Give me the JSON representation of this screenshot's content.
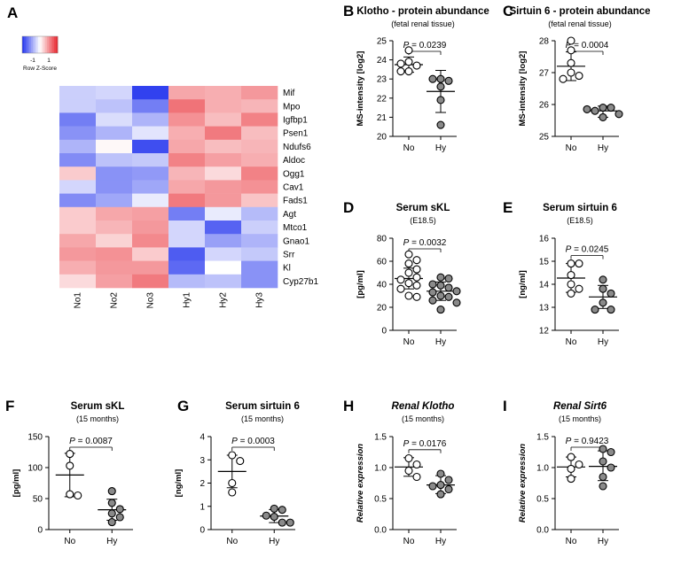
{
  "panel_a": {
    "letter": "A",
    "legend": {
      "ticks": [
        "-1",
        "1"
      ],
      "label": "Row Z-Score"
    },
    "genes": [
      "Mif",
      "Mpo",
      "Igfbp1",
      "Psen1",
      "Ndufs6",
      "Aldoc",
      "Ogg1",
      "Cav1",
      "Fads1",
      "Agt",
      "Mtco1",
      "Gnao1",
      "Srr",
      "Kl",
      "Cyp27b1"
    ],
    "samples": [
      "No1",
      "No2",
      "No3",
      "Hy1",
      "Hy2",
      "Hy3"
    ]
  },
  "colors": {
    "high": "#e8222a",
    "low": "#2233ee",
    "mid": "#ffffff",
    "open_fill": "#ffffff",
    "filled_fill": "#8a8a8a"
  },
  "chart_data": [
    {
      "type": "heatmap",
      "title": "",
      "rows": [
        "Mif",
        "Mpo",
        "Igfbp1",
        "Psen1",
        "Ndufs6",
        "Aldoc",
        "Ogg1",
        "Cav1",
        "Fads1",
        "Agt",
        "Mtco1",
        "Gnao1",
        "Srr",
        "Kl",
        "Cyp27b1"
      ],
      "columns": [
        "No1",
        "No2",
        "No3",
        "Hy1",
        "Hy2",
        "Hy3"
      ],
      "zrange": [
        -1.5,
        1.5
      ],
      "values": [
        [
          -0.35,
          -0.3,
          -1.4,
          0.6,
          0.55,
          0.7
        ],
        [
          -0.35,
          -0.45,
          -0.95,
          0.95,
          0.55,
          0.5
        ],
        [
          -0.95,
          -0.25,
          -0.55,
          0.75,
          0.45,
          0.85
        ],
        [
          -0.8,
          -0.55,
          -0.2,
          0.55,
          0.9,
          0.45
        ],
        [
          -0.55,
          0.05,
          -1.3,
          0.6,
          0.45,
          0.5
        ],
        [
          -0.85,
          -0.45,
          -0.4,
          0.85,
          0.65,
          0.55
        ],
        [
          0.35,
          -0.8,
          -0.75,
          0.5,
          0.25,
          0.85
        ],
        [
          -0.3,
          -0.8,
          -0.65,
          0.6,
          0.7,
          0.75
        ],
        [
          -0.85,
          -0.65,
          -0.15,
          0.9,
          0.7,
          0.4
        ],
        [
          0.35,
          0.6,
          0.65,
          -0.95,
          -0.15,
          -0.5
        ],
        [
          0.35,
          0.5,
          0.7,
          -0.3,
          -1.15,
          -0.35
        ],
        [
          0.6,
          0.3,
          0.8,
          -0.3,
          -0.7,
          -0.55
        ],
        [
          0.7,
          0.75,
          0.35,
          -1.2,
          -0.3,
          -0.4
        ],
        [
          0.55,
          0.7,
          0.7,
          -1.1,
          0.0,
          -0.8
        ],
        [
          0.25,
          0.65,
          0.9,
          -0.5,
          -0.45,
          -0.8
        ]
      ]
    },
    {
      "type": "scatter",
      "panel": "B",
      "title": "Klotho - protein abundance",
      "subtitle": "(fetal renal tissue)",
      "title_italic": false,
      "ylabel": "MS-intensity [log2]",
      "ylabel_italic": false,
      "ylim": [
        20,
        25
      ],
      "yticks": [
        "20",
        "21",
        "22",
        "23",
        "24",
        "25"
      ],
      "categories": [
        "No",
        "Hy"
      ],
      "pvalue": "0.0239",
      "groups": [
        {
          "name": "No",
          "values": [
            24.5,
            23.9,
            23.7,
            23.4,
            23.4,
            23.8
          ],
          "mean": 23.75,
          "sd_low": 23.35,
          "sd_high": 24.15
        },
        {
          "name": "Hy",
          "values": [
            23.0,
            22.9,
            22.6,
            21.9,
            20.6,
            23.0
          ],
          "mean": 22.35,
          "sd_low": 21.25,
          "sd_high": 23.45
        }
      ]
    },
    {
      "type": "scatter",
      "panel": "C",
      "title": "Sirtuin 6 - protein abundance",
      "subtitle": "(fetal renal tissue)",
      "title_italic": false,
      "ylabel": "MS-intensity [log2]",
      "ylabel_italic": false,
      "ylim": [
        25,
        28
      ],
      "yticks": [
        "25",
        "26",
        "27",
        "28"
      ],
      "categories": [
        "No",
        "Hy"
      ],
      "pvalue": "0.0004",
      "groups": [
        {
          "name": "No",
          "values": [
            28.0,
            27.3,
            27.0,
            26.9,
            26.8,
            27.7
          ],
          "mean": 27.2,
          "sd_low": 26.75,
          "sd_high": 27.65
        },
        {
          "name": "Hy",
          "values": [
            25.9,
            25.9,
            25.8,
            25.6,
            25.7,
            25.85
          ],
          "mean": 25.8,
          "sd_low": 25.6,
          "sd_high": 25.95
        }
      ]
    },
    {
      "type": "scatter",
      "panel": "D",
      "title": "Serum sKL",
      "subtitle": "(E18.5)",
      "title_italic": false,
      "ylabel": "[pg/ml]",
      "ylabel_italic": false,
      "ylim": [
        0,
        80
      ],
      "yticks": [
        "0",
        "20",
        "40",
        "60",
        "80"
      ],
      "categories": [
        "No",
        "Hy"
      ],
      "pvalue": "0.0032",
      "groups": [
        {
          "name": "No",
          "values": [
            66,
            61,
            58,
            53,
            50,
            46,
            44,
            41,
            39,
            36,
            30,
            29
          ],
          "mean": 45,
          "sd_low": 36,
          "sd_high": 54
        },
        {
          "name": "Hy",
          "values": [
            46,
            45,
            40,
            39,
            37,
            34,
            33,
            30,
            29,
            26,
            24,
            18
          ],
          "mean": 34,
          "sd_low": 26,
          "sd_high": 42
        }
      ]
    },
    {
      "type": "scatter",
      "panel": "E",
      "title": "Serum sirtuin 6",
      "subtitle": "(E18.5)",
      "title_italic": false,
      "ylabel": "[ng/ml]",
      "ylabel_italic": false,
      "ylim": [
        12,
        16
      ],
      "yticks": [
        "12",
        "13",
        "14",
        "15",
        "16"
      ],
      "categories": [
        "No",
        "Hy"
      ],
      "pvalue": "0.0245",
      "groups": [
        {
          "name": "No",
          "values": [
            14.9,
            14.9,
            14.4,
            14.0,
            13.8,
            13.6
          ],
          "mean": 14.27,
          "sd_low": 13.65,
          "sd_high": 14.9
        },
        {
          "name": "Hy",
          "values": [
            14.2,
            13.8,
            13.6,
            13.2,
            12.9,
            12.9
          ],
          "mean": 13.45,
          "sd_low": 12.95,
          "sd_high": 13.95
        }
      ]
    },
    {
      "type": "scatter",
      "panel": "F",
      "title": "Serum sKL",
      "subtitle": "(15 months)",
      "title_italic": false,
      "ylabel": "[pg/ml]",
      "ylabel_italic": false,
      "ylim": [
        0,
        150
      ],
      "yticks": [
        "0",
        "50",
        "100",
        "150"
      ],
      "categories": [
        "No",
        "Hy"
      ],
      "pvalue": "0.0087",
      "groups": [
        {
          "name": "No",
          "values": [
            122,
            103,
            57,
            55
          ],
          "mean": 88,
          "sd_low": 53,
          "sd_high": 123
        },
        {
          "name": "Hy",
          "values": [
            62,
            43,
            33,
            26,
            20,
            12
          ],
          "mean": 32,
          "sd_low": 15,
          "sd_high": 49
        }
      ]
    },
    {
      "type": "scatter",
      "panel": "G",
      "title": "Serum sirtuin 6",
      "subtitle": "(15 months)",
      "title_italic": false,
      "ylabel": "[ng/ml]",
      "ylabel_italic": false,
      "ylim": [
        0,
        4
      ],
      "yticks": [
        "0",
        "1",
        "2",
        "3",
        "4"
      ],
      "categories": [
        "No",
        "Hy"
      ],
      "pvalue": "0.0003",
      "groups": [
        {
          "name": "No",
          "values": [
            3.2,
            2.95,
            2.0,
            1.6
          ],
          "mean": 2.5,
          "sd_low": 1.8,
          "sd_high": 3.2
        },
        {
          "name": "Hy",
          "values": [
            0.9,
            0.85,
            0.6,
            0.55,
            0.3,
            0.3
          ],
          "mean": 0.58,
          "sd_low": 0.3,
          "sd_high": 0.86
        }
      ]
    },
    {
      "type": "scatter",
      "panel": "H",
      "title": "Renal Klotho",
      "subtitle": "(15 months)",
      "title_italic": true,
      "ylabel": "Relative expression",
      "ylabel_italic": true,
      "ylim": [
        0,
        1.5
      ],
      "yticks": [
        "0.0",
        "0.5",
        "1.0",
        "1.5"
      ],
      "categories": [
        "No",
        "Hy"
      ],
      "pvalue": "0.0176",
      "groups": [
        {
          "name": "No",
          "values": [
            1.15,
            1.05,
            0.95,
            0.85
          ],
          "mean": 1.01,
          "sd_low": 0.86,
          "sd_high": 1.16
        },
        {
          "name": "Hy",
          "values": [
            0.9,
            0.8,
            0.72,
            0.7,
            0.65,
            0.57
          ],
          "mean": 0.72,
          "sd_low": 0.58,
          "sd_high": 0.87
        }
      ]
    },
    {
      "type": "scatter",
      "panel": "I",
      "title": "Renal Sirt6",
      "subtitle": "(15 months)",
      "title_italic": true,
      "ylabel": "Relative expression",
      "ylabel_italic": true,
      "ylim": [
        0,
        1.5
      ],
      "yticks": [
        "0.0",
        "0.5",
        "1.0",
        "1.5"
      ],
      "categories": [
        "No",
        "Hy"
      ],
      "pvalue": "0.9423",
      "groups": [
        {
          "name": "No",
          "values": [
            1.17,
            1.05,
            0.98,
            0.82
          ],
          "mean": 1.01,
          "sd_low": 0.85,
          "sd_high": 1.17
        },
        {
          "name": "Hy",
          "values": [
            1.3,
            1.25,
            1.1,
            1.0,
            0.85,
            0.7
          ],
          "mean": 1.02,
          "sd_low": 0.79,
          "sd_high": 1.27
        }
      ]
    }
  ]
}
